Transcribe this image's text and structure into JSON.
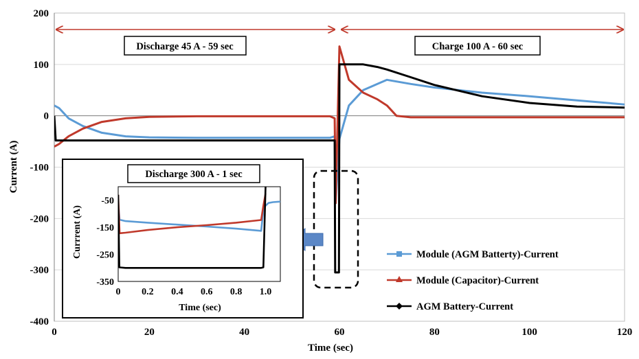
{
  "chart_data": [
    {
      "type": "line",
      "xlabel": "Time (sec)",
      "ylabel": "Current (A)",
      "xlim": [
        0,
        120
      ],
      "ylim": [
        -400,
        200
      ],
      "xticks": [
        0,
        20,
        40,
        60,
        80,
        100,
        120
      ],
      "yticks": [
        -400,
        -300,
        -200,
        -100,
        0,
        100,
        200
      ],
      "grid": "horizontal",
      "legend_position": "bottom-right",
      "annotations": [
        {
          "text": "Discharge 45 A - 59 sec",
          "x_from": 0,
          "x_to": 59
        },
        {
          "text": "Charge 100 A - 60 sec",
          "x_from": 60,
          "x_to": 120
        }
      ],
      "series": [
        {
          "name": "Module (AGM Batterty)-Current",
          "color": "#5B9BD5",
          "marker": "square",
          "x": [
            0,
            1,
            3,
            6,
            10,
            15,
            20,
            30,
            40,
            50,
            58,
            59,
            59.2,
            60,
            62,
            65,
            68,
            70,
            75,
            80,
            90,
            100,
            110,
            120
          ],
          "y": [
            20,
            15,
            -5,
            -20,
            -33,
            -40,
            -42,
            -43,
            -43,
            -43,
            -43,
            -40,
            -170,
            -45,
            20,
            50,
            62,
            70,
            62,
            55,
            45,
            38,
            30,
            22
          ]
        },
        {
          "name": "Module (Capacitor)-Current",
          "color": "#C0392B",
          "marker": "triangle",
          "x": [
            0,
            1,
            3,
            6,
            10,
            15,
            20,
            30,
            40,
            50,
            58,
            59,
            59.2,
            60,
            62,
            65,
            68,
            70,
            72,
            75,
            80,
            90,
            100,
            110,
            120
          ],
          "y": [
            -60,
            -55,
            -40,
            -25,
            -12,
            -5,
            -2,
            -1,
            -1,
            -1,
            -1,
            -5,
            -170,
            135,
            70,
            45,
            32,
            20,
            0,
            -3,
            -3,
            -3,
            -3,
            -3,
            -3
          ]
        },
        {
          "name": "AGM Battery-Current",
          "color": "#000000",
          "marker": "diamond",
          "x": [
            0,
            0.3,
            1,
            10,
            20,
            30,
            40,
            50,
            58,
            59,
            59.1,
            59.9,
            60,
            60.3,
            62,
            65,
            68,
            70,
            75,
            80,
            90,
            100,
            110,
            120
          ],
          "y": [
            0,
            -48,
            -48,
            -48,
            -48,
            -48,
            -48,
            -48,
            -48,
            -48,
            -305,
            -305,
            100,
            100,
            100,
            100,
            95,
            90,
            75,
            60,
            38,
            25,
            18,
            16
          ]
        }
      ]
    },
    {
      "type": "line",
      "title": "Discharge 300 A - 1 sec",
      "xlabel": "Time (sec)",
      "ylabel": "Currrent (A)",
      "xlim": [
        0,
        1.1
      ],
      "ylim": [
        -350,
        0
      ],
      "xticks": [
        0,
        0.2,
        0.4,
        0.6,
        0.8,
        1.0
      ],
      "xtick_labels": [
        "0",
        "0.2",
        "0.4",
        "0.6",
        "0.8",
        "1.0"
      ],
      "yticks": [
        -350,
        -250,
        -150,
        -50
      ],
      "series": [
        {
          "name": "Module (AGM Batterty)-Current",
          "color": "#5B9BD5",
          "x": [
            0,
            0.01,
            0.05,
            0.2,
            0.4,
            0.6,
            0.8,
            0.97,
            0.985,
            1.0,
            1.02,
            1.05,
            1.1
          ],
          "y": [
            -58,
            -122,
            -127,
            -133,
            -140,
            -147,
            -155,
            -163,
            -85,
            -70,
            -60,
            -57,
            -55
          ]
        },
        {
          "name": "Module (Capacitor)-Current",
          "color": "#C0392B",
          "x": [
            0,
            0.01,
            0.05,
            0.2,
            0.4,
            0.6,
            0.8,
            0.97,
            0.985,
            1.0
          ],
          "y": [
            -30,
            -172,
            -170,
            -160,
            -150,
            -142,
            -133,
            -123,
            -70,
            -25
          ]
        },
        {
          "name": "AGM Battery-Current",
          "color": "#000000",
          "x": [
            0,
            0.008,
            0.05,
            0.2,
            0.4,
            0.6,
            0.8,
            0.97,
            0.985,
            1.0
          ],
          "y": [
            -30,
            -298,
            -300,
            -300,
            -300,
            -300,
            -300,
            -300,
            -298,
            0
          ]
        }
      ]
    }
  ]
}
